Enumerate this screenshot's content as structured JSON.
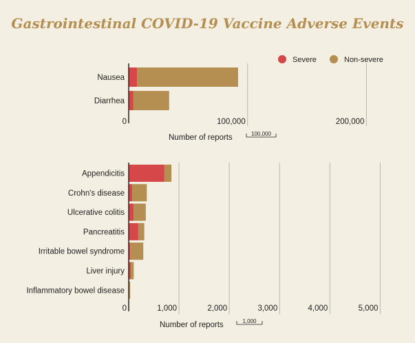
{
  "title": "Gastrointestinal COVID-19 Vaccine Adverse Events",
  "legend": [
    {
      "name": "Severe",
      "color": "#d6474a"
    },
    {
      "name": "Non-severe",
      "color": "#b58e52"
    }
  ],
  "chart_data": [
    {
      "type": "bar",
      "orientation": "horizontal",
      "stacked": true,
      "categories": [
        "Nausea",
        "Diarrhea"
      ],
      "series": [
        {
          "name": "Severe",
          "values": [
            7000,
            4000
          ]
        },
        {
          "name": "Non-severe",
          "values": [
            85000,
            30000
          ]
        }
      ],
      "xlim": [
        0,
        220000
      ],
      "ticks": [
        0,
        100000,
        200000
      ],
      "tick_labels": [
        "0",
        "100,000",
        "200,000"
      ],
      "xlabel": "Number of reports",
      "scale_label": "100,000"
    },
    {
      "type": "bar",
      "orientation": "horizontal",
      "stacked": true,
      "categories": [
        "Appendicitis",
        "Crohn's disease",
        "Ulcerative colitis",
        "Pancreatitis",
        "Irritable bowel syndrome",
        "Liver injury",
        "Inflammatory bowel disease"
      ],
      "series": [
        {
          "name": "Severe",
          "values": [
            710,
            70,
            100,
            190,
            30,
            40,
            10
          ]
        },
        {
          "name": "Non-severe",
          "values": [
            140,
            290,
            240,
            120,
            260,
            60,
            20
          ]
        }
      ],
      "xlim": [
        0,
        5200
      ],
      "ticks": [
        0,
        1000,
        2000,
        3000,
        4000,
        5000
      ],
      "tick_labels": [
        "0",
        "1,000",
        "2,000",
        "3,000",
        "4,000",
        "5,000"
      ],
      "xlabel": "Number of reports",
      "scale_label": "1,000"
    }
  ]
}
